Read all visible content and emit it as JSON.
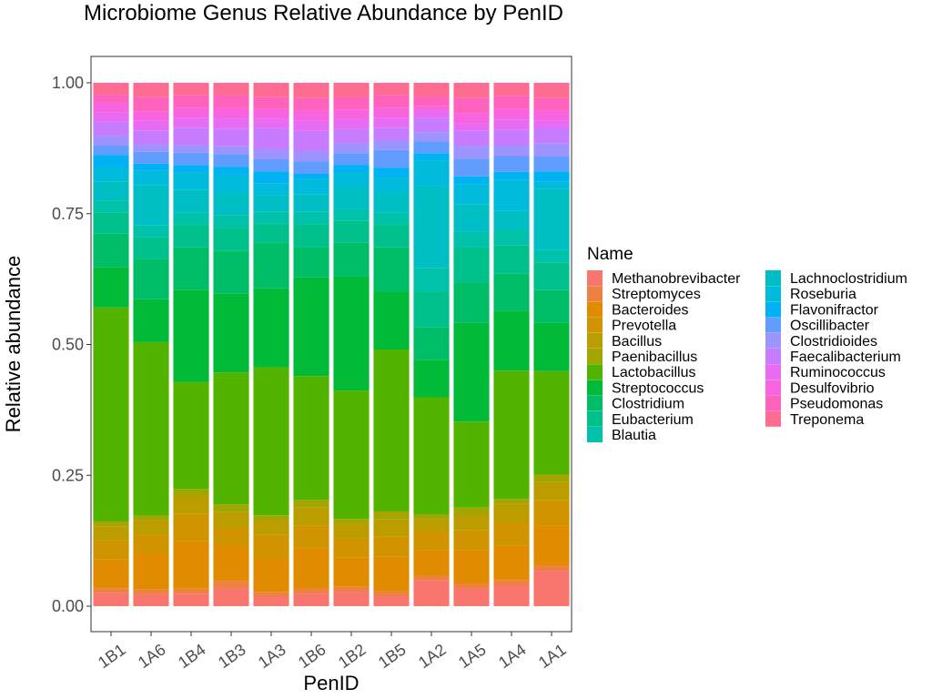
{
  "chart_data": {
    "type": "bar",
    "stacked": true,
    "title": "Microbiome Genus Relative Abundance by PenID",
    "xlabel": "PenID",
    "ylabel": "Relative abundance",
    "ylim": [
      0,
      1
    ],
    "yticks": [
      "0.00",
      "0.25",
      "0.50",
      "0.75",
      "1.00"
    ],
    "grid": false,
    "legend": {
      "title": "Name",
      "position": "right",
      "columns": 2
    },
    "categories": [
      "1B1",
      "1A6",
      "1B4",
      "1B3",
      "1A3",
      "1B6",
      "1B2",
      "1B5",
      "1A2",
      "1A5",
      "1A4",
      "1A1"
    ],
    "series": [
      {
        "name": "Methanobrevibacter",
        "color": "#F8766D",
        "values": [
          0.028,
          0.025,
          0.025,
          0.035,
          0.02,
          0.025,
          0.03,
          0.02,
          0.055,
          0.035,
          0.04,
          0.07
        ]
      },
      {
        "name": "Streptomyces",
        "color": "#ED8141",
        "values": [
          0.01,
          0.01,
          0.01,
          0.015,
          0.01,
          0.01,
          0.01,
          0.01,
          0.01,
          0.01,
          0.01,
          0.01
        ]
      },
      {
        "name": "Bacteroides",
        "color": "#E08B00",
        "values": [
          0.06,
          0.075,
          0.095,
          0.07,
          0.07,
          0.08,
          0.06,
          0.07,
          0.055,
          0.065,
          0.065,
          0.08
        ]
      },
      {
        "name": "Prevotella",
        "color": "#CF9400",
        "values": [
          0.04,
          0.04,
          0.055,
          0.035,
          0.05,
          0.045,
          0.04,
          0.04,
          0.04,
          0.04,
          0.045,
          0.05
        ]
      },
      {
        "name": "Bacillus",
        "color": "#BB9D00",
        "values": [
          0.03,
          0.03,
          0.035,
          0.03,
          0.03,
          0.035,
          0.03,
          0.035,
          0.025,
          0.03,
          0.035,
          0.035
        ]
      },
      {
        "name": "Paenibacillus",
        "color": "#A3A500",
        "values": [
          0.01,
          0.01,
          0.015,
          0.015,
          0.01,
          0.015,
          0.01,
          0.015,
          0.01,
          0.015,
          0.01,
          0.015
        ]
      },
      {
        "name": "Lactobacillus",
        "color": "#53B400",
        "values": [
          0.45,
          0.365,
          0.215,
          0.26,
          0.31,
          0.245,
          0.265,
          0.325,
          0.25,
          0.17,
          0.245,
          0.205
        ]
      },
      {
        "name": "Streptococcus",
        "color": "#00BA38",
        "values": [
          0.085,
          0.09,
          0.185,
          0.155,
          0.165,
          0.195,
          0.235,
          0.115,
          0.08,
          0.195,
          0.115,
          0.095
        ]
      },
      {
        "name": "Clostridium",
        "color": "#00BE67",
        "values": [
          0.07,
          0.085,
          0.085,
          0.085,
          0.095,
          0.06,
          0.07,
          0.09,
          0.07,
          0.08,
          0.07,
          0.065
        ]
      },
      {
        "name": "Eubacterium",
        "color": "#00C08B",
        "values": [
          0.045,
          0.045,
          0.045,
          0.045,
          0.04,
          0.045,
          0.045,
          0.045,
          0.075,
          0.07,
          0.055,
          0.055
        ]
      },
      {
        "name": "Blautia",
        "color": "#00C1A9",
        "values": [
          0.025,
          0.025,
          0.025,
          0.025,
          0.025,
          0.025,
          0.025,
          0.025,
          0.05,
          0.03,
          0.03,
          0.025
        ]
      },
      {
        "name": "Lachnoclostridium",
        "color": "#00BFC4",
        "values": [
          0.04,
          0.085,
          0.045,
          0.045,
          0.035,
          0.035,
          0.045,
          0.04,
          0.175,
          0.055,
          0.035,
          0.12
        ]
      },
      {
        "name": "Roseburia",
        "color": "#00BBDB",
        "values": [
          0.03,
          0.03,
          0.035,
          0.035,
          0.025,
          0.03,
          0.03,
          0.03,
          0.055,
          0.04,
          0.06,
          0.015
        ]
      },
      {
        "name": "Flavonifractor",
        "color": "#00B2F3",
        "values": [
          0.025,
          0.015,
          0.015,
          0.015,
          0.025,
          0.01,
          0.015,
          0.02,
          0.015,
          0.015,
          0.015,
          0.02
        ]
      },
      {
        "name": "Oscillibacter",
        "color": "#619CFF",
        "values": [
          0.02,
          0.025,
          0.025,
          0.025,
          0.025,
          0.025,
          0.025,
          0.035,
          0.025,
          0.035,
          0.03,
          0.03
        ]
      },
      {
        "name": "Clostridioides",
        "color": "#9E94FF",
        "values": [
          0.02,
          0.015,
          0.015,
          0.015,
          0.02,
          0.02,
          0.02,
          0.02,
          0.02,
          0.025,
          0.02,
          0.025
        ]
      },
      {
        "name": "Faecalibacterium",
        "color": "#C77CFF",
        "values": [
          0.03,
          0.03,
          0.035,
          0.035,
          0.045,
          0.04,
          0.03,
          0.025,
          0.03,
          0.03,
          0.03,
          0.03
        ]
      },
      {
        "name": "Ruminococcus",
        "color": "#E76BF3",
        "values": [
          0.02,
          0.02,
          0.02,
          0.02,
          0.02,
          0.02,
          0.02,
          0.02,
          0.015,
          0.015,
          0.02,
          0.015
        ]
      },
      {
        "name": "Desulfovibrio",
        "color": "#F863DF",
        "values": [
          0.02,
          0.02,
          0.02,
          0.02,
          0.02,
          0.02,
          0.02,
          0.02,
          0.01,
          0.02,
          0.02,
          0.02
        ]
      },
      {
        "name": "Pseudomonas",
        "color": "#FF62BC",
        "values": [
          0.017,
          0.03,
          0.025,
          0.025,
          0.025,
          0.025,
          0.025,
          0.025,
          0.02,
          0.03,
          0.025,
          0.025
        ]
      },
      {
        "name": "Treponema",
        "color": "#FF6C91",
        "values": [
          0.025,
          0.03,
          0.025,
          0.025,
          0.03,
          0.03,
          0.03,
          0.025,
          0.03,
          0.03,
          0.025,
          0.03
        ]
      }
    ]
  }
}
